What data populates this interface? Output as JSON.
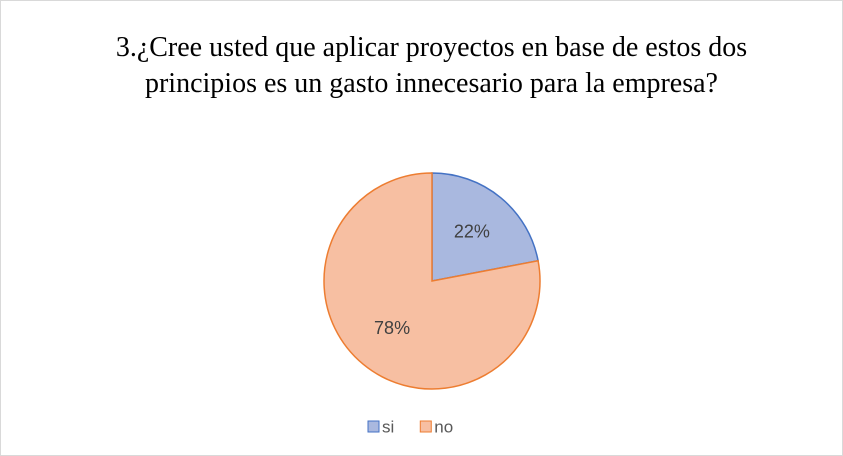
{
  "chart_data": {
    "type": "pie",
    "title": "3.¿Cree usted que aplicar proyectos en base de estos dos principios es un gasto innecesario para la empresa?",
    "categories": [
      "si",
      "no"
    ],
    "values": [
      22,
      78
    ],
    "value_labels": [
      "22%",
      "78%"
    ],
    "colors": [
      "#a9b8df",
      "#f7bfa2"
    ],
    "edge_colors": [
      "#4472c4",
      "#ed7d31"
    ],
    "legend": "bottom"
  }
}
